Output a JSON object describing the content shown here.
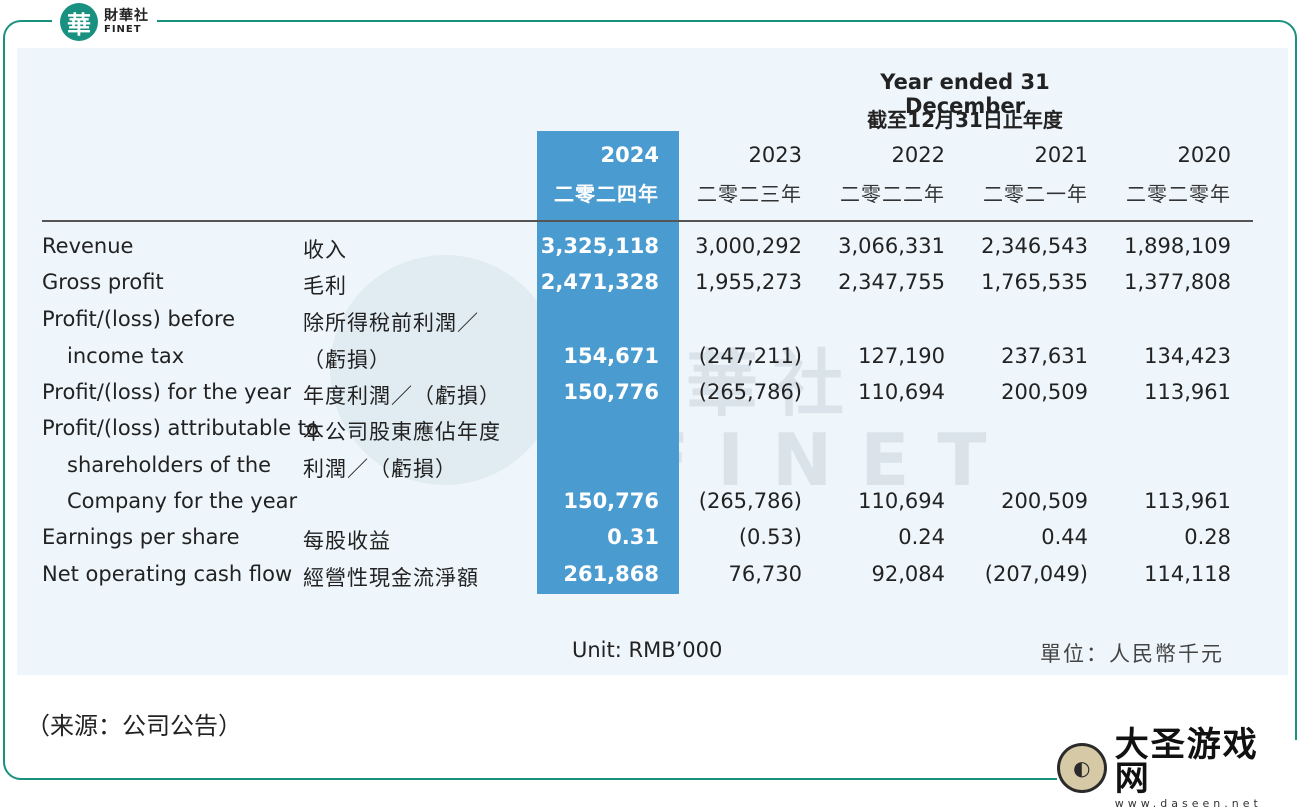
{
  "logo": {
    "mark": "華",
    "cn": "財華社",
    "en": "FINET"
  },
  "watermark": {
    "cn": "財華社",
    "en": "FINET"
  },
  "header": {
    "title_en": "Year ended 31 December",
    "title_cn": "截至12月31日止年度"
  },
  "years": [
    {
      "en": "2024",
      "cn": "二零二四年"
    },
    {
      "en": "2023",
      "cn": "二零二三年"
    },
    {
      "en": "2022",
      "cn": "二零二二年"
    },
    {
      "en": "2021",
      "cn": "二零二一年"
    },
    {
      "en": "2020",
      "cn": "二零二零年"
    }
  ],
  "rows": [
    {
      "en": [
        "Revenue"
      ],
      "cn": [
        "收入"
      ],
      "values": [
        "3,325,118",
        "3,000,292",
        "3,066,331",
        "2,346,543",
        "1,898,109"
      ]
    },
    {
      "en": [
        "Gross profit"
      ],
      "cn": [
        "毛利"
      ],
      "values": [
        "2,471,328",
        "1,955,273",
        "2,347,755",
        "1,765,535",
        "1,377,808"
      ]
    },
    {
      "en": [
        "Profit/(loss) before",
        "income tax"
      ],
      "cn": [
        "除所得稅前利潤／",
        "（虧損）"
      ],
      "values": [
        "154,671",
        "(247,211)",
        "127,190",
        "237,631",
        "134,423"
      ]
    },
    {
      "en": [
        "Profit/(loss) for the year"
      ],
      "cn": [
        "年度利潤／（虧損）"
      ],
      "values": [
        "150,776",
        "(265,786)",
        "110,694",
        "200,509",
        "113,961"
      ]
    },
    {
      "en": [
        "Profit/(loss) attributable to",
        "shareholders of the",
        "Company for the year"
      ],
      "cn": [
        "本公司股東應佔年度",
        "利潤／（虧損）"
      ],
      "values": [
        "150,776",
        "(265,786)",
        "110,694",
        "200,509",
        "113,961"
      ]
    },
    {
      "en": [
        "Earnings per share"
      ],
      "cn": [
        "每股收益"
      ],
      "values": [
        "0.31",
        "(0.53)",
        "0.24",
        "0.44",
        "0.28"
      ]
    },
    {
      "en": [
        "Net operating cash flow"
      ],
      "cn": [
        "經營性現金流淨額"
      ],
      "values": [
        "261,868",
        "76,730",
        "92,084",
        "(207,049)",
        "114,118"
      ]
    }
  ],
  "unit": {
    "en": "Unit: RMB’000",
    "cn": "單位：人民幣千元"
  },
  "source": "（来源：公司公告）",
  "badge": {
    "mark": "◐",
    "cn": "大圣游戏网",
    "url": "www.daseen.net"
  }
}
